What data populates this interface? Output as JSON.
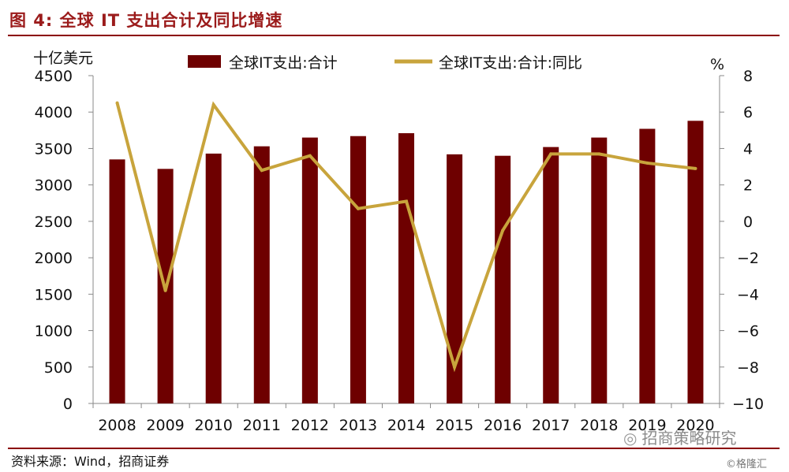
{
  "header": {
    "title": "图 4:  全球 IT 支出合计及同比增速"
  },
  "footer": {
    "source": "资料来源：Wind，招商证券",
    "watermark": "招商策略研究",
    "watermark2": "©格隆汇"
  },
  "colors": {
    "bar": "#6e0000",
    "line": "#c8a43c",
    "accent": "#9b1b1b"
  },
  "chart_data": {
    "type": "bar",
    "categories": [
      "2008",
      "2009",
      "2010",
      "2011",
      "2012",
      "2013",
      "2014",
      "2015",
      "2016",
      "2017",
      "2018",
      "2019",
      "2020"
    ],
    "series": [
      {
        "name": "全球IT支出:合计",
        "type": "bar",
        "axis": "left",
        "values": [
          3350,
          3220,
          3430,
          3530,
          3650,
          3670,
          3710,
          3420,
          3400,
          3520,
          3650,
          3770,
          3880
        ]
      },
      {
        "name": "全球IT支出:合计:同比",
        "type": "line",
        "axis": "right",
        "values": [
          6.5,
          -3.8,
          6.4,
          2.8,
          3.6,
          0.7,
          1.1,
          -8.0,
          -0.5,
          3.7,
          3.7,
          3.2,
          2.9
        ]
      }
    ],
    "ylabel_left": "十亿美元",
    "ylabel_right": "%",
    "ylim_left": [
      0,
      4500
    ],
    "ylim_right": [
      -10,
      8
    ],
    "yticks_left": [
      "0",
      "500",
      "1000",
      "1500",
      "2000",
      "2500",
      "3000",
      "3500",
      "4000",
      "4500"
    ],
    "yticks_right": [
      "−10",
      "−8",
      "−6",
      "−4",
      "−2",
      "0",
      "2",
      "4",
      "6",
      "8"
    ],
    "grid": false,
    "legend_position": "top"
  }
}
